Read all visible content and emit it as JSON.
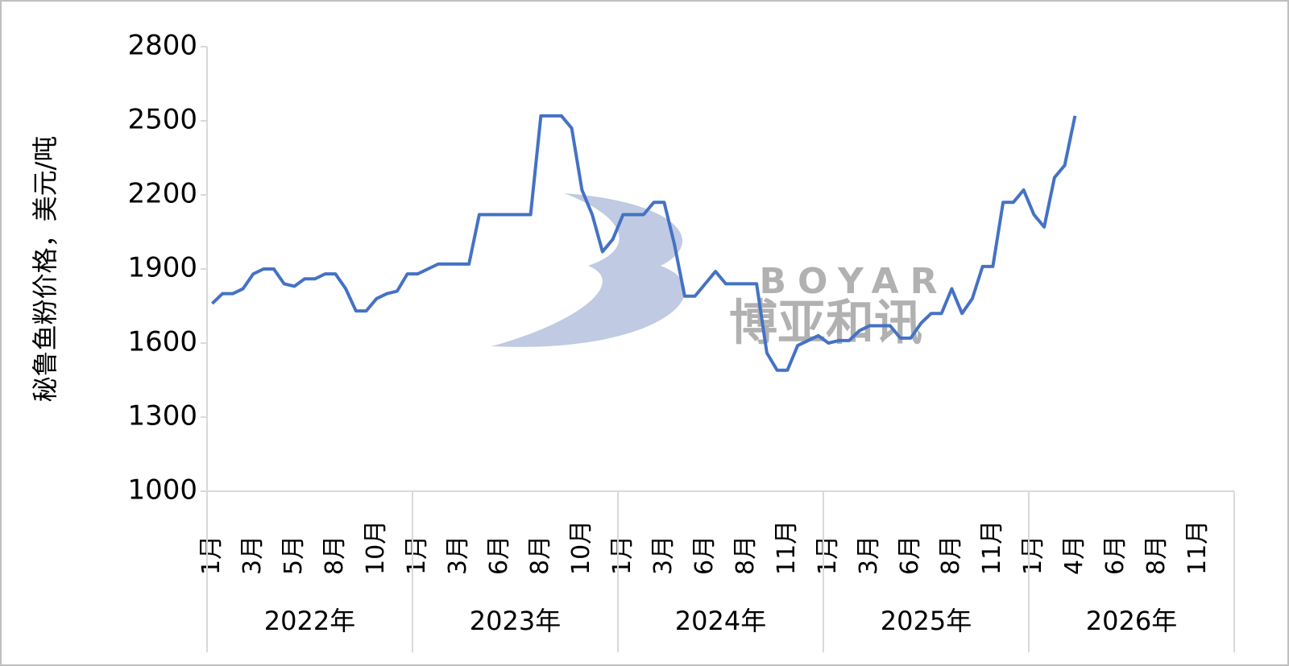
{
  "chart_data": {
    "type": "line",
    "y_label": "秘鲁鱼粉价格，美元/吨",
    "watermark": {
      "text_en": "BOYAR",
      "text_cn": "博亚和讯"
    },
    "groups": [
      "2022年",
      "2023年",
      "2024年",
      "2025年",
      "2026年"
    ],
    "group_size": 20,
    "categories": [
      "1月",
      null,
      null,
      null,
      "3月",
      null,
      null,
      null,
      "5月",
      null,
      null,
      null,
      "8月",
      null,
      null,
      null,
      "10月",
      null,
      null,
      null,
      "1月",
      null,
      null,
      null,
      "3月",
      null,
      null,
      null,
      "6月",
      null,
      null,
      null,
      "8月",
      null,
      null,
      null,
      "10月",
      null,
      null,
      null,
      "1月",
      null,
      null,
      null,
      "3月",
      null,
      null,
      null,
      "6月",
      null,
      null,
      null,
      "8月",
      null,
      null,
      null,
      "11月",
      null,
      null,
      null,
      "1月",
      null,
      null,
      null,
      "3月",
      null,
      null,
      null,
      "6月",
      null,
      null,
      null,
      "8月",
      null,
      null,
      null,
      "11月",
      null,
      null,
      null,
      "1月",
      null,
      null,
      null,
      "4月",
      null,
      null,
      null,
      "6月",
      null,
      null,
      null,
      "8月",
      null,
      null,
      null,
      "11月",
      null,
      null,
      null
    ],
    "series": [
      {
        "name": "秘鲁鱼粉价格",
        "color": "#4472c4",
        "values": [
          1760,
          1800,
          1800,
          1820,
          1880,
          1900,
          1900,
          1840,
          1830,
          1860,
          1860,
          1880,
          1880,
          1820,
          1730,
          1730,
          1780,
          1800,
          1810,
          1880,
          1880,
          1900,
          1920,
          1920,
          1920,
          1920,
          2120,
          2120,
          2120,
          2120,
          2120,
          2120,
          2520,
          2520,
          2520,
          2470,
          2220,
          2120,
          1970,
          2020,
          2120,
          2120,
          2120,
          2170,
          2170,
          2000,
          1790,
          1790,
          1840,
          1890,
          1840,
          1840,
          1840,
          1840,
          1560,
          1490,
          1490,
          1590,
          1610,
          1630,
          1600,
          1610,
          1610,
          1650,
          1670,
          1670,
          1670,
          1620,
          1620,
          1680,
          1720,
          1720,
          1820,
          1720,
          1780,
          1910,
          1910,
          2170,
          2170,
          2220,
          2120,
          2070,
          2270,
          2320,
          2520,
          null,
          null,
          null,
          null,
          null,
          null,
          null,
          null,
          null,
          null,
          null,
          null,
          null,
          null,
          null
        ]
      }
    ],
    "ylim": [
      1000,
      2800
    ],
    "yticks": [
      1000,
      1300,
      1600,
      1900,
      2200,
      2500,
      2800
    ],
    "grid": false
  }
}
